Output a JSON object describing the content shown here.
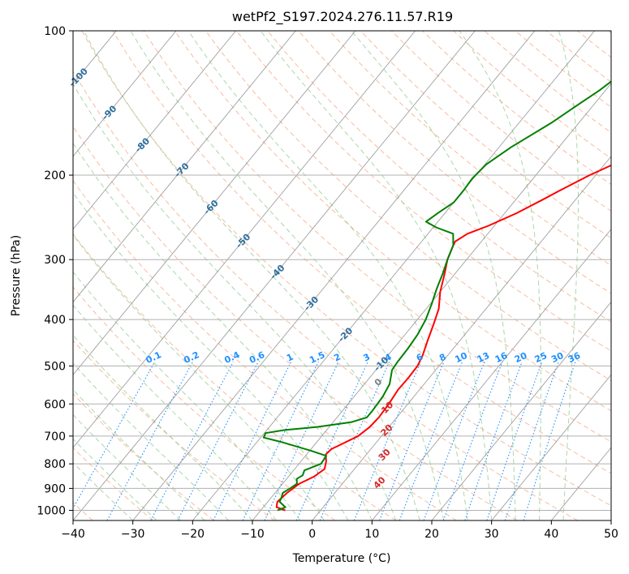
{
  "chart_data": {
    "type": "line",
    "title": "wetPf2_S197.2024.276.11.57.R19",
    "xlabel": "Temperature (°C)",
    "ylabel": "Pressure (hPa)",
    "xlim": [
      -40,
      50
    ],
    "ylim": [
      1050,
      100
    ],
    "y_scale": "log",
    "x_ticks": [
      "−40",
      "−30",
      "−20",
      "−10",
      "0",
      "10",
      "20",
      "30",
      "40",
      "50"
    ],
    "y_ticks": [
      "100",
      "200",
      "300",
      "400",
      "500",
      "600",
      "700",
      "800",
      "900",
      "1000"
    ],
    "grid": true,
    "series": [
      {
        "color": "#ff0000",
        "points": [
          [
            -5.9,
            1000
          ],
          [
            -7.8,
            985
          ],
          [
            -8.4,
            960
          ],
          [
            -8.0,
            920
          ],
          [
            -7.2,
            880
          ],
          [
            -5.7,
            850
          ],
          [
            -5.0,
            820
          ],
          [
            -5.8,
            790
          ],
          [
            -6.8,
            765
          ],
          [
            -6.6,
            745
          ],
          [
            -5.4,
            725
          ],
          [
            -3.9,
            700
          ],
          [
            -3.2,
            670
          ],
          [
            -3.0,
            640
          ],
          [
            -3.2,
            600
          ],
          [
            -3.6,
            560
          ],
          [
            -3.5,
            530
          ],
          [
            -3.6,
            500
          ],
          [
            -4.2,
            475
          ],
          [
            -5.5,
            440
          ],
          [
            -6.6,
            410
          ],
          [
            -7.9,
            380
          ],
          [
            -10.0,
            350
          ],
          [
            -11.8,
            320
          ],
          [
            -13.2,
            300
          ],
          [
            -14.2,
            280
          ],
          [
            -14.4,
            275
          ],
          [
            -13.4,
            265
          ],
          [
            -11.0,
            255
          ],
          [
            -8.0,
            240
          ],
          [
            -5.5,
            225
          ],
          [
            -4.0,
            216
          ],
          [
            -1.0,
            200
          ],
          [
            4.0,
            180
          ],
          [
            9.5,
            160
          ],
          [
            14.5,
            145
          ],
          [
            19.0,
            130
          ],
          [
            25.5,
            115
          ],
          [
            30.0,
            106
          ],
          [
            33.0,
            100
          ]
        ]
      },
      {
        "color": "#008000",
        "points": [
          [
            -7.2,
            1000
          ],
          [
            -6.3,
            985
          ],
          [
            -8.0,
            960
          ],
          [
            -8.3,
            940
          ],
          [
            -8.7,
            920
          ],
          [
            -8.1,
            900
          ],
          [
            -7.6,
            880
          ],
          [
            -8.3,
            860
          ],
          [
            -7.8,
            845
          ],
          [
            -8.2,
            825
          ],
          [
            -6.3,
            800
          ],
          [
            -6.5,
            770
          ],
          [
            -10.0,
            750
          ],
          [
            -16.0,
            720
          ],
          [
            -19.5,
            705
          ],
          [
            -19.8,
            690
          ],
          [
            -17.0,
            680
          ],
          [
            -12.0,
            670
          ],
          [
            -7.0,
            655
          ],
          [
            -5.0,
            640
          ],
          [
            -5.0,
            620
          ],
          [
            -5.2,
            580
          ],
          [
            -5.8,
            545
          ],
          [
            -7.3,
            510
          ],
          [
            -7.5,
            490
          ],
          [
            -7.6,
            460
          ],
          [
            -7.9,
            430
          ],
          [
            -8.6,
            400
          ],
          [
            -9.8,
            370
          ],
          [
            -11.0,
            345
          ],
          [
            -12.1,
            320
          ],
          [
            -13.2,
            300
          ],
          [
            -14.2,
            280
          ],
          [
            -15.8,
            265
          ],
          [
            -19.5,
            257
          ],
          [
            -22.0,
            250
          ],
          [
            -21.2,
            240
          ],
          [
            -20.0,
            228
          ],
          [
            -20.0,
            215
          ],
          [
            -20.2,
            203
          ],
          [
            -19.8,
            190
          ],
          [
            -18.0,
            175
          ],
          [
            -14.5,
            155
          ],
          [
            -13.0,
            145
          ],
          [
            -11.0,
            133
          ],
          [
            -9.5,
            122
          ],
          [
            -7.5,
            112
          ],
          [
            -4.0,
            100
          ]
        ]
      }
    ],
    "mixing_ratio_labels": [
      "0.1",
      "0.2",
      "0.4",
      "0.6",
      "1",
      "1.5",
      "2",
      "3",
      "4",
      "6",
      "8",
      "10",
      "13",
      "16",
      "20",
      "25",
      "30",
      "36"
    ],
    "mixing_ratio_values": [
      0.1,
      0.2,
      0.4,
      0.6,
      1,
      1.5,
      2,
      3,
      4,
      6,
      8,
      10,
      13,
      16,
      20,
      25,
      30,
      36
    ],
    "mixing_ratio_color": "#1e90ff",
    "dry_adiabat_labels": [
      "-100",
      "-90",
      "-80",
      "-70",
      "-60",
      "-50",
      "-40",
      "-30",
      "-20",
      "-10"
    ],
    "dry_adiabat_color": "#2f6f9f",
    "moist_adiabat_labels": [
      "0",
      "10",
      "20",
      "30",
      "40"
    ],
    "moist_adiabat_colors": [
      "#808080",
      "#d62728",
      "#d62728",
      "#d62728",
      "#d62728"
    ],
    "colors": {
      "dry_adiabat": "#f4a582",
      "moist_adiabat": "#8fc98f",
      "isotherm": "#888888",
      "grid": "#b0b0b0",
      "frame": "#000000"
    }
  }
}
